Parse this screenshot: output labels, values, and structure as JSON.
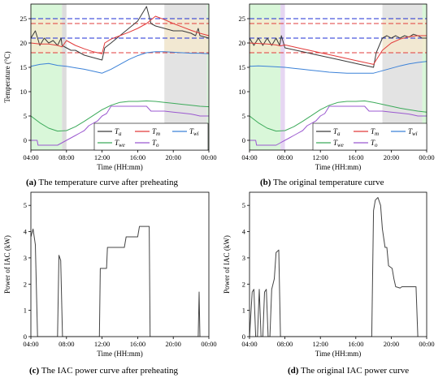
{
  "chart_data": [
    {
      "id": "a",
      "type": "line",
      "caption_letter": "(a)",
      "caption_text": " The temperature curve after preheating",
      "xlabel": "Time (HH:mm)",
      "ylabel": "Temperature (°C)",
      "xlim": [
        4,
        24
      ],
      "ylim": [
        -2,
        28
      ],
      "x_ticks": [
        {
          "v": 4,
          "label": "04:00"
        },
        {
          "v": 8,
          "label": "08:00"
        },
        {
          "v": 12,
          "label": "12:00"
        },
        {
          "v": 16,
          "label": "16:00"
        },
        {
          "v": 20,
          "label": "20:00"
        },
        {
          "v": 24,
          "label": "00:00"
        }
      ],
      "y_ticks": [
        0,
        5,
        10,
        15,
        20,
        25
      ],
      "shaded_regions": [
        {
          "from": 4,
          "to": 7.5,
          "color": "#d9f7d9"
        },
        {
          "from": 7.5,
          "to": 8.0,
          "color": "#dcdcdc"
        },
        {
          "from": 19,
          "to": 23.8,
          "color": "#e3e3e3"
        },
        {
          "from": 23.8,
          "to": 24,
          "color": "#d9f7d9"
        }
      ],
      "bands": [
        {
          "from": 18,
          "to": 25,
          "color": "#f7e9cc",
          "x_from": 4,
          "x_to": 7.5
        },
        {
          "from": 18,
          "to": 25,
          "color": "#f7e9cc",
          "x_from": 19,
          "x_to": 24
        }
      ],
      "hlines": [
        {
          "y": 25,
          "color": "#1f2fd6",
          "dash": "6,3"
        },
        {
          "y": 24,
          "color": "#e23b3b",
          "dash": "6,3"
        },
        {
          "y": 21,
          "color": "#1f2fd6",
          "dash": "6,3"
        },
        {
          "y": 18,
          "color": "#e23b3b",
          "dash": "6,3"
        }
      ],
      "series": [
        {
          "name": "T_a",
          "color": "#3a3a3a",
          "x": [
            4,
            4.5,
            5,
            5.5,
            6,
            6.5,
            7,
            7.4,
            7.5,
            8,
            8.5,
            9,
            10,
            11,
            12,
            12.3,
            13,
            14,
            15,
            16,
            17,
            17.5,
            18,
            19,
            20,
            21,
            22,
            22.5,
            22.8,
            23,
            24
          ],
          "y": [
            21,
            22.5,
            19.5,
            21,
            20,
            20.5,
            19.5,
            21,
            19.5,
            19,
            18.5,
            18.5,
            17.5,
            17,
            16.5,
            19,
            20,
            21.5,
            23,
            24.5,
            27.5,
            24,
            23.5,
            23,
            22.5,
            22.5,
            22,
            21.5,
            23,
            21.5,
            21
          ]
        },
        {
          "name": "T_m",
          "color": "#e23b3b",
          "x": [
            4,
            5,
            6,
            7,
            7.5,
            8,
            9,
            10,
            11,
            12,
            12.3,
            13,
            14,
            15,
            16,
            17,
            18,
            19,
            20,
            21,
            22,
            23,
            24
          ],
          "y": [
            20,
            19.8,
            19.8,
            19.5,
            19.2,
            20.5,
            19.5,
            18.8,
            18.2,
            17.8,
            20,
            20.8,
            21.5,
            22.2,
            23,
            24,
            25.5,
            24.8,
            24,
            23.3,
            22.6,
            22,
            21.5
          ]
        },
        {
          "name": "T_wi",
          "color": "#3c82d8",
          "x": [
            4,
            5,
            6,
            7,
            8,
            9,
            10,
            11,
            12,
            13,
            14,
            15,
            16,
            17,
            18,
            19,
            20,
            21,
            22,
            23,
            24
          ],
          "y": [
            15.2,
            15.6,
            15.8,
            15.4,
            15.2,
            14.9,
            14.6,
            14.2,
            13.8,
            14.6,
            15.6,
            16.6,
            17.4,
            18,
            18.2,
            18.2,
            18.1,
            18,
            17.9,
            17.9,
            17.8
          ]
        },
        {
          "name": "T_we",
          "color": "#3caa5a",
          "x": [
            4,
            5,
            6,
            7,
            8,
            9,
            10,
            11,
            12,
            13,
            14,
            15,
            16,
            17,
            18,
            19,
            20,
            21,
            22,
            23,
            24
          ],
          "y": [
            5,
            3.6,
            2.5,
            1.9,
            2,
            2.8,
            3.9,
            5.1,
            6.3,
            7.2,
            7.8,
            8,
            8,
            8.1,
            8,
            7.8,
            7.6,
            7.4,
            7.2,
            7,
            6.9
          ]
        },
        {
          "name": "T_o",
          "color": "#9b59d0",
          "x": [
            4,
            4.7,
            4.8,
            6.5,
            7,
            7.5,
            8,
            8.5,
            9,
            9.5,
            10,
            10.5,
            11,
            11.5,
            12,
            12.5,
            13,
            17,
            17.5,
            19,
            20,
            21,
            22,
            22.5,
            23,
            24
          ],
          "y": [
            0,
            0,
            -1,
            -1,
            -1,
            -0.5,
            0,
            0.5,
            1,
            1.5,
            2,
            3,
            3.5,
            4,
            5,
            5.5,
            7,
            7,
            6,
            6,
            5.8,
            5.6,
            5.4,
            5.2,
            5,
            5
          ]
        }
      ],
      "legend": [
        {
          "sym": "T",
          "sub": "a",
          "color": "#3a3a3a"
        },
        {
          "sym": "T",
          "sub": "m",
          "color": "#e23b3b"
        },
        {
          "sym": "T",
          "sub": "wi",
          "color": "#3c82d8"
        },
        {
          "sym": "T",
          "sub": "we",
          "color": "#3caa5a"
        },
        {
          "sym": "T",
          "sub": "o",
          "color": "#9b59d0"
        }
      ]
    },
    {
      "id": "b",
      "type": "line",
      "caption_letter": "(b)",
      "caption_text": " The original temperature curve",
      "xlabel": "Time (HH:mm)",
      "ylabel": "",
      "xlim": [
        4,
        24
      ],
      "ylim": [
        -2,
        28
      ],
      "x_ticks": [
        {
          "v": 4,
          "label": "04:00"
        },
        {
          "v": 8,
          "label": "08:00"
        },
        {
          "v": 12,
          "label": "12:00"
        },
        {
          "v": 16,
          "label": "16:00"
        },
        {
          "v": 20,
          "label": "20:00"
        },
        {
          "v": 24,
          "label": "00:00"
        }
      ],
      "y_ticks": [
        0,
        5,
        10,
        15,
        20,
        25
      ],
      "shaded_regions": [
        {
          "from": 4,
          "to": 7.5,
          "color": "#d9f7d9"
        },
        {
          "from": 7.5,
          "to": 8.0,
          "color": "#e6d6f2"
        },
        {
          "from": 19,
          "to": 23.5,
          "color": "#e3e3e3"
        },
        {
          "from": 23.5,
          "to": 24,
          "color": "#d9f7d9"
        }
      ],
      "bands": [
        {
          "from": 18,
          "to": 25,
          "color": "#f7e9cc",
          "x_from": 4,
          "x_to": 7.5
        },
        {
          "from": 18,
          "to": 25,
          "color": "#f7e9cc",
          "x_from": 19,
          "x_to": 24
        }
      ],
      "hlines": [
        {
          "y": 25,
          "color": "#1f2fd6",
          "dash": "6,3"
        },
        {
          "y": 24,
          "color": "#e23b3b",
          "dash": "6,3"
        },
        {
          "y": 21,
          "color": "#1f2fd6",
          "dash": "6,3"
        },
        {
          "y": 18,
          "color": "#e23b3b",
          "dash": "6,3"
        }
      ],
      "series": [
        {
          "name": "T_a",
          "color": "#3a3a3a",
          "x": [
            4,
            4.5,
            5,
            5.5,
            6,
            6.5,
            7,
            7.4,
            7.6,
            8,
            10,
            12,
            14,
            16,
            18,
            18.3,
            19,
            19.5,
            20,
            20.5,
            21,
            21.5,
            22,
            22.5,
            23,
            23.5,
            24
          ],
          "y": [
            21,
            19.5,
            21,
            19.5,
            21,
            19.5,
            21,
            19.5,
            21.5,
            19,
            18.2,
            17.4,
            16.6,
            15.8,
            15,
            18,
            21,
            21.5,
            21,
            21.5,
            21,
            21.5,
            21.2,
            21.8,
            21.5,
            21,
            21
          ]
        },
        {
          "name": "T_m",
          "color": "#e23b3b",
          "x": [
            4,
            5,
            6,
            7,
            7.5,
            8,
            10,
            12,
            14,
            16,
            18,
            18.3,
            19,
            20,
            21,
            22,
            23,
            24
          ],
          "y": [
            20,
            19.9,
            19.8,
            19.6,
            19.4,
            19.6,
            18.8,
            18,
            17.2,
            16.4,
            15.6,
            16.5,
            18.5,
            20,
            20.8,
            21.3,
            21.5,
            21.5
          ]
        },
        {
          "name": "T_wi",
          "color": "#3c82d8",
          "x": [
            4,
            5,
            6,
            7,
            8,
            9,
            10,
            11,
            12,
            13,
            14,
            15,
            16,
            17,
            18,
            19,
            20,
            21,
            22,
            23,
            24
          ],
          "y": [
            15.2,
            15.3,
            15.2,
            15.1,
            15,
            14.8,
            14.6,
            14.4,
            14.2,
            14,
            13.9,
            13.8,
            13.8,
            13.8,
            13.8,
            14.3,
            14.8,
            15.3,
            15.7,
            16,
            16.2
          ]
        },
        {
          "name": "T_we",
          "color": "#3caa5a",
          "x": [
            4,
            5,
            6,
            7,
            8,
            9,
            10,
            11,
            12,
            13,
            14,
            15,
            16,
            17,
            18,
            19,
            20,
            21,
            22,
            23,
            24
          ],
          "y": [
            5,
            3.6,
            2.5,
            1.9,
            2,
            2.8,
            3.9,
            5.1,
            6.3,
            7.2,
            7.8,
            8,
            8,
            8.1,
            7.8,
            7.4,
            7,
            6.6,
            6.3,
            6,
            5.8
          ]
        },
        {
          "name": "T_o",
          "color": "#9b59d0",
          "x": [
            4,
            4.7,
            4.8,
            6.5,
            7,
            7.5,
            8,
            8.5,
            9,
            9.5,
            10,
            10.5,
            11,
            11.5,
            12,
            12.5,
            13,
            17,
            17.5,
            19,
            20,
            21,
            22,
            22.5,
            23,
            24
          ],
          "y": [
            0,
            0,
            -1,
            -1,
            -1,
            -0.5,
            0,
            0.5,
            1,
            1.5,
            2,
            3,
            3.5,
            4,
            5,
            5.5,
            7,
            7,
            6,
            6,
            5.8,
            5.6,
            5.4,
            5.2,
            5,
            5
          ]
        }
      ],
      "legend": [
        {
          "sym": "T",
          "sub": "a",
          "color": "#3a3a3a"
        },
        {
          "sym": "T",
          "sub": "m",
          "color": "#e23b3b"
        },
        {
          "sym": "T",
          "sub": "wi",
          "color": "#3c82d8"
        },
        {
          "sym": "T",
          "sub": "we",
          "color": "#3caa5a"
        },
        {
          "sym": "T",
          "sub": "o",
          "color": "#9b59d0"
        }
      ]
    },
    {
      "id": "c",
      "type": "line",
      "caption_letter": "(c)",
      "caption_text": " The IAC power curve after preheating",
      "xlabel": "Time (HH:mm)",
      "ylabel": "Power of IAC (kW)",
      "xlim": [
        4,
        24
      ],
      "ylim": [
        0,
        5.5
      ],
      "x_ticks": [
        {
          "v": 4,
          "label": "04:00"
        },
        {
          "v": 8,
          "label": "08:00"
        },
        {
          "v": 12,
          "label": "12:00"
        },
        {
          "v": 16,
          "label": "16:00"
        },
        {
          "v": 20,
          "label": "20:00"
        },
        {
          "v": 24,
          "label": "00:00"
        }
      ],
      "y_ticks": [
        0,
        1,
        2,
        3,
        4,
        5
      ],
      "series": [
        {
          "name": "",
          "color": "#444444",
          "x": [
            4,
            4.25,
            4.5,
            4.75,
            7.0,
            7.15,
            7.35,
            7.55,
            11.7,
            11.8,
            12.5,
            12.6,
            14.5,
            14.7,
            16.0,
            16.2,
            17.3,
            17.4,
            22.8,
            22.9,
            23.0
          ],
          "y": [
            3.8,
            4.1,
            3.5,
            0,
            0,
            3.1,
            2.9,
            0,
            0,
            2.6,
            2.6,
            3.4,
            3.4,
            3.8,
            3.8,
            4.2,
            4.2,
            0,
            0,
            1.7,
            0
          ]
        }
      ]
    },
    {
      "id": "d",
      "type": "line",
      "caption_letter": "(d)",
      "caption_text": " The original IAC power curve",
      "xlabel": "Time (HH:mm)",
      "ylabel": "Power of IAC (kW)",
      "xlim": [
        4,
        24
      ],
      "ylim": [
        0,
        5.5
      ],
      "x_ticks": [
        {
          "v": 4,
          "label": "04:00"
        },
        {
          "v": 8,
          "label": "08:00"
        },
        {
          "v": 12,
          "label": "12:00"
        },
        {
          "v": 16,
          "label": "16:00"
        },
        {
          "v": 20,
          "label": "20:00"
        },
        {
          "v": 24,
          "label": "00:00"
        }
      ],
      "y_ticks": [
        0,
        1,
        2,
        3,
        4,
        5
      ],
      "series": [
        {
          "name": "",
          "color": "#444444",
          "x": [
            4,
            4.3,
            4.5,
            4.7,
            4.9,
            5.1,
            5.3,
            5.5,
            5.7,
            5.9,
            6.1,
            6.3,
            6.5,
            6.8,
            7.0,
            7.3,
            7.5,
            17.8,
            18.0,
            18.2,
            18.5,
            18.8,
            19.0,
            19.3,
            19.5,
            19.7,
            20.1,
            20.3,
            20.5,
            21.0,
            21.2,
            22.8,
            23.0
          ],
          "y": [
            0,
            1.7,
            1.8,
            0,
            0,
            1.8,
            0,
            0,
            1.7,
            1.8,
            0,
            0,
            1.8,
            2.2,
            3.2,
            3.3,
            0,
            0,
            4.8,
            5.2,
            5.3,
            5.0,
            4.1,
            3.4,
            3.4,
            2.7,
            2.6,
            2.2,
            1.9,
            1.85,
            1.9,
            1.9,
            0
          ]
        }
      ]
    }
  ]
}
